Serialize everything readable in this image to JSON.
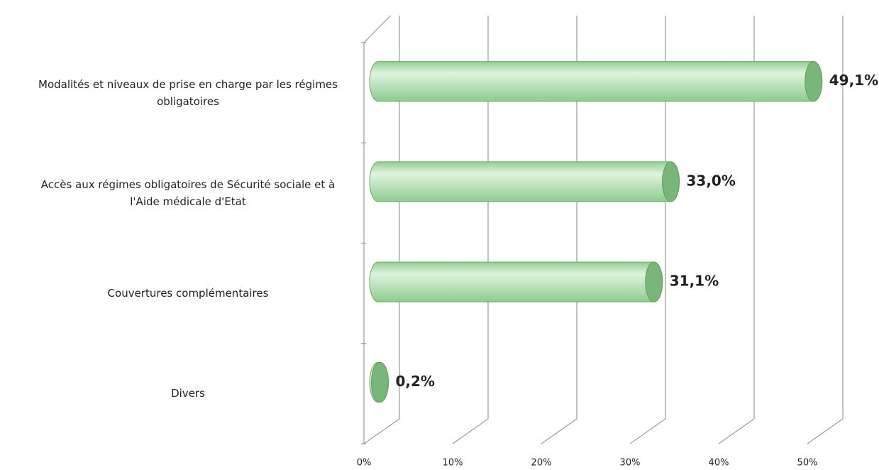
{
  "chart_data": {
    "type": "bar3d",
    "categories": [
      "Modalités et niveaux de prise en charge par les régimes obligatoires",
      "Accès aux régimes obligatoires de Sécurité sociale et à l'Aide médicale d'Etat",
      "Couvertures complémentaires",
      "Divers"
    ],
    "values": [
      49.1,
      33.0,
      31.1,
      0.2
    ],
    "value_labels": [
      "49,1%",
      "33,0%",
      "31,1%",
      "0,2%"
    ],
    "color": "#a8dba8",
    "xlim": [
      0,
      50
    ],
    "xticks": [
      {
        "value": 0,
        "label": "0%"
      },
      {
        "value": 10,
        "label": "10%"
      },
      {
        "value": 20,
        "label": "20%"
      },
      {
        "value": 30,
        "label": "30%"
      },
      {
        "value": 40,
        "label": "40%"
      },
      {
        "value": 50,
        "label": "50%"
      }
    ],
    "grid": true
  }
}
